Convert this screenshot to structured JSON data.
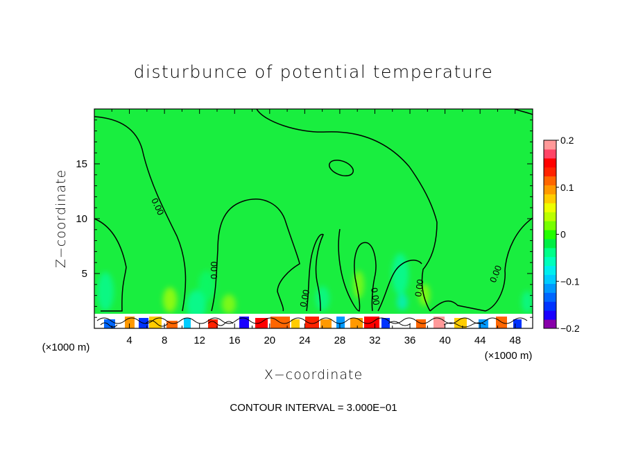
{
  "chart_data": {
    "type": "heatmap",
    "title": "disturbunce of potential temperature",
    "xlabel": "X−coordinate",
    "ylabel": "Z−coordinate",
    "x_unit_label": "(×1000 m)",
    "x_unit_label_right": "(×1000 m)",
    "xlim": [
      0,
      50
    ],
    "ylim": [
      0,
      20
    ],
    "x_ticks": [
      4,
      8,
      12,
      16,
      20,
      24,
      28,
      32,
      36,
      40,
      44,
      48
    ],
    "y_ticks": [
      5,
      10,
      15
    ],
    "contour_interval_text": "CONTOUR INTERVAL = 3.000E−01",
    "contour_label": "0.00",
    "colorbar": {
      "range": [
        -0.2,
        0.2
      ],
      "tick_values": [
        0.2,
        0.1,
        0,
        -0.1,
        -0.2
      ],
      "tick_labels": [
        "0.2",
        "0.1",
        "0",
        "−0.1",
        "−0.2"
      ],
      "colors": [
        "#8800aa",
        "#1a00ff",
        "#0033ff",
        "#0066ff",
        "#0099ff",
        "#00ccff",
        "#00eeee",
        "#00ffbb",
        "#00ff88",
        "#00ee44",
        "#22ff00",
        "#77ff00",
        "#bbff00",
        "#eeff00",
        "#ffcc00",
        "#ff9900",
        "#ff6600",
        "#ff2200",
        "#ff0000",
        "#ff4466",
        "#ff9999"
      ]
    },
    "field_background_color": "#19ee3f"
  }
}
